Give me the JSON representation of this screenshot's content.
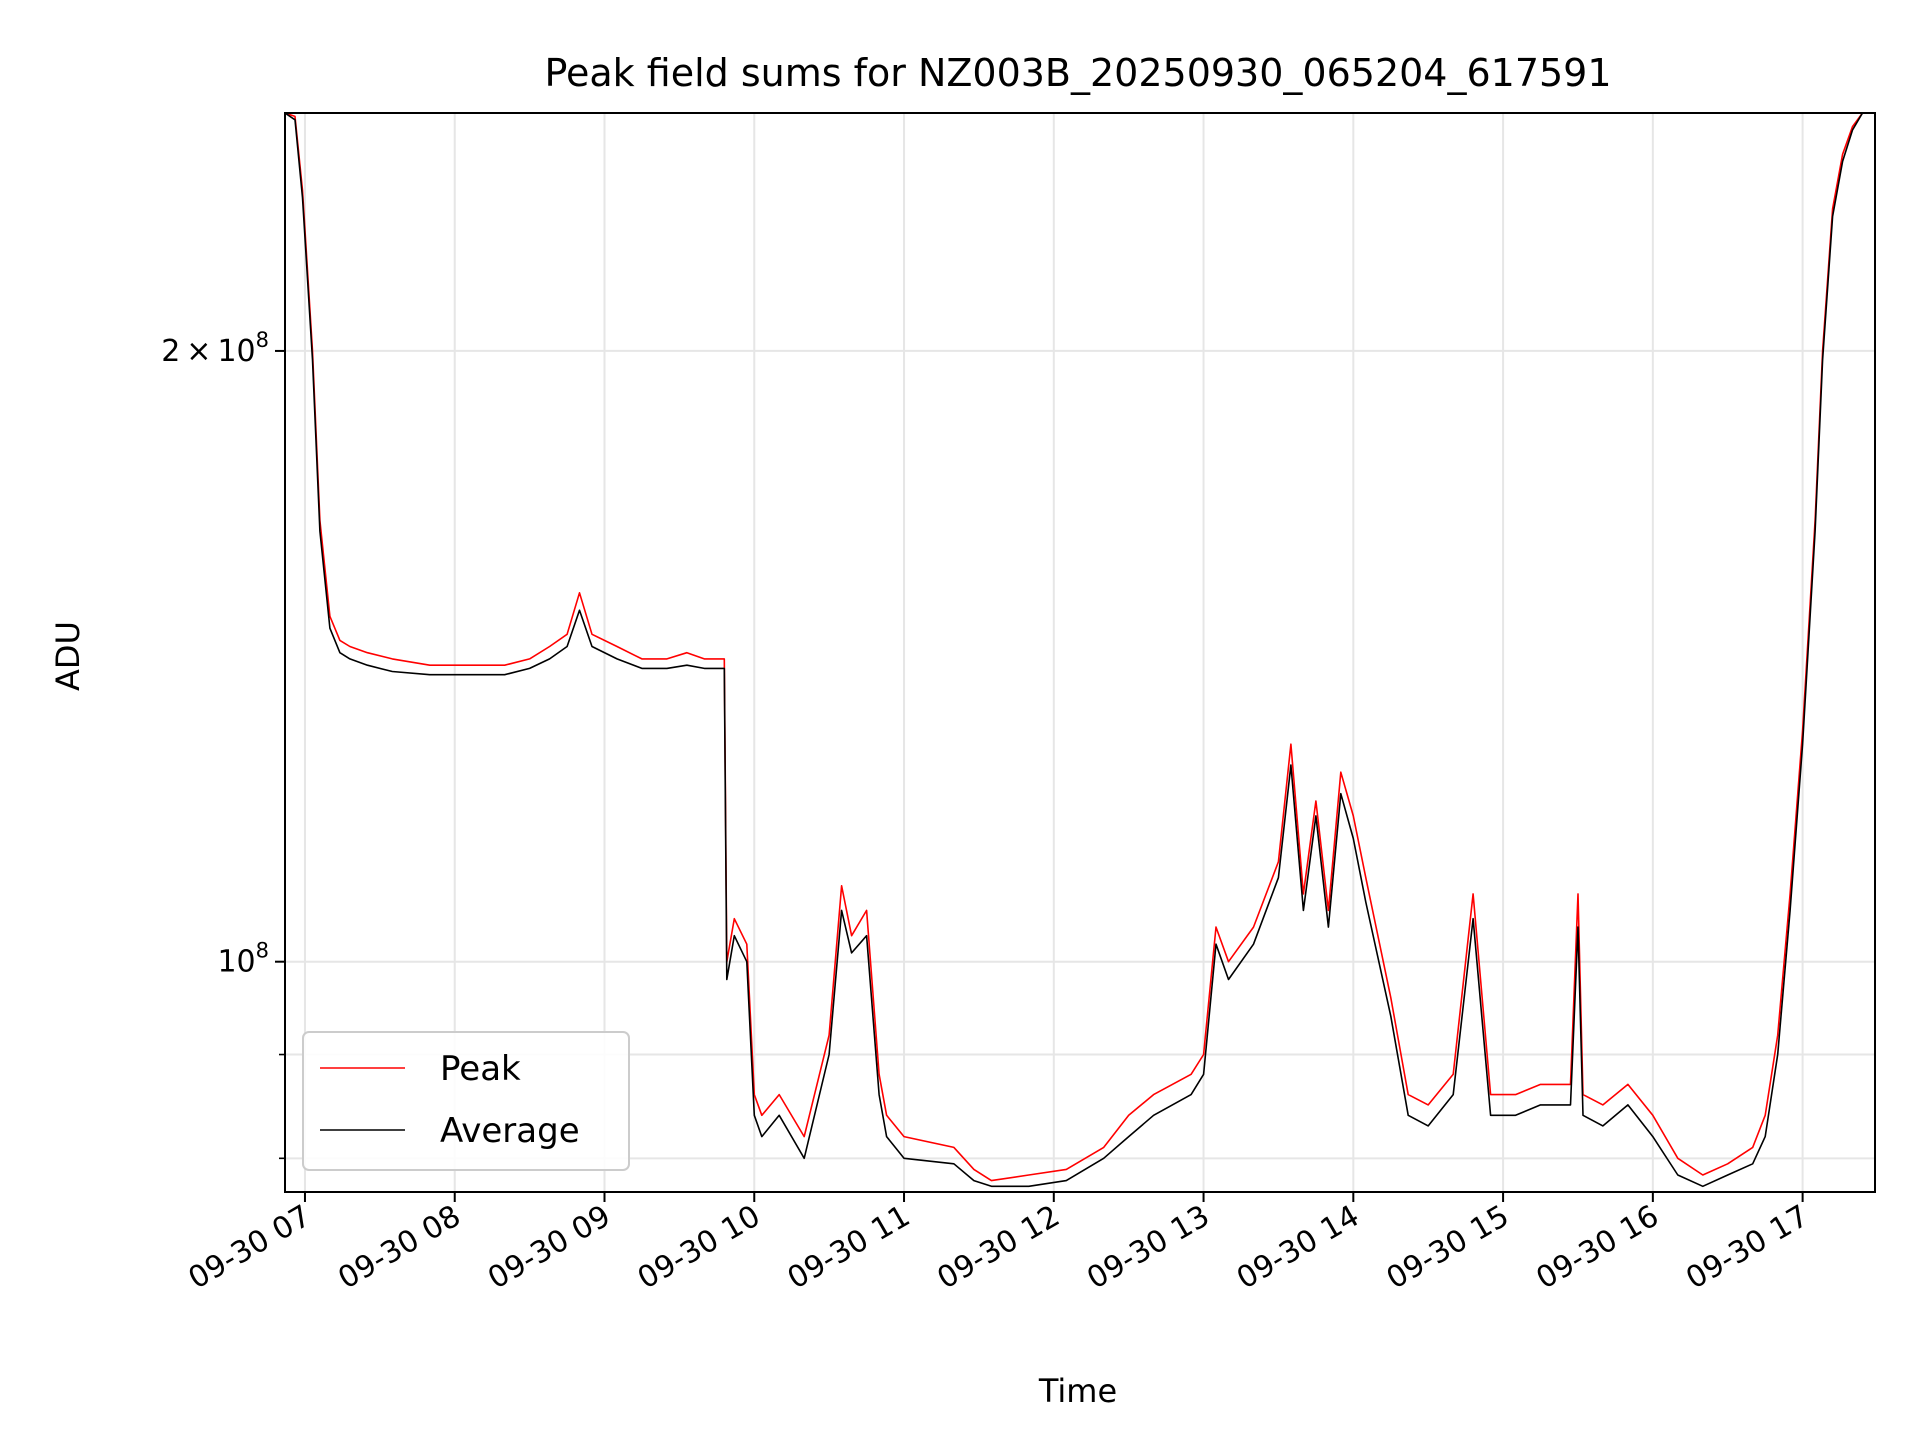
{
  "chart_data": {
    "type": "line",
    "title": "Peak field sums for NZ003B_20250930_065204_617591",
    "xlabel": "Time",
    "ylabel": "ADU",
    "x_scale": "time",
    "y_scale": "log",
    "xlim": [
      "2025-09-30 06:52",
      "2025-09-30 17:29"
    ],
    "ylim": [
      77000000,
      262000000
    ],
    "grid": true,
    "legend": {
      "placement": "lower-left",
      "entries": [
        "Peak",
        "Average"
      ]
    },
    "x_ticks": [
      "09-30 07",
      "09-30 08",
      "09-30 09",
      "09-30 10",
      "09-30 11",
      "09-30 12",
      "09-30 13",
      "09-30 14",
      "09-30 15",
      "09-30 16",
      "09-30 17"
    ],
    "y_tick_labels": [
      {
        "value": 100000000,
        "mantissa": "",
        "base": "10",
        "exp": "8"
      },
      {
        "value": 200000000,
        "mantissa": "2",
        "times": "×",
        "base": "10",
        "exp": "8"
      }
    ],
    "y_minor_ticks": [
      80000000,
      90000000
    ],
    "colors": {
      "Peak": "#ff0000",
      "Average": "#000000",
      "grid": "#e6e6e6"
    },
    "series": [
      {
        "name": "Peak",
        "x": [
          "2025-09-30 06:52",
          "2025-09-30 06:56",
          "2025-09-30 06:59",
          "2025-09-30 07:03",
          "2025-09-30 07:06",
          "2025-09-30 07:10",
          "2025-09-30 07:14",
          "2025-09-30 07:18",
          "2025-09-30 07:25",
          "2025-09-30 07:35",
          "2025-09-30 07:50",
          "2025-09-30 08:05",
          "2025-09-30 08:20",
          "2025-09-30 08:30",
          "2025-09-30 08:38",
          "2025-09-30 08:45",
          "2025-09-30 08:50",
          "2025-09-30 08:55",
          "2025-09-30 09:05",
          "2025-09-30 09:15",
          "2025-09-30 09:25",
          "2025-09-30 09:33",
          "2025-09-30 09:40",
          "2025-09-30 09:48",
          "2025-09-30 09:49",
          "2025-09-30 09:52",
          "2025-09-30 09:57",
          "2025-09-30 10:00",
          "2025-09-30 10:03",
          "2025-09-30 10:10",
          "2025-09-30 10:20",
          "2025-09-30 10:30",
          "2025-09-30 10:35",
          "2025-09-30 10:39",
          "2025-09-30 10:45",
          "2025-09-30 10:50",
          "2025-09-30 10:53",
          "2025-09-30 11:00",
          "2025-09-30 11:20",
          "2025-09-30 11:28",
          "2025-09-30 11:35",
          "2025-09-30 11:50",
          "2025-09-30 12:05",
          "2025-09-30 12:20",
          "2025-09-30 12:30",
          "2025-09-30 12:40",
          "2025-09-30 12:55",
          "2025-09-30 13:00",
          "2025-09-30 13:05",
          "2025-09-30 13:10",
          "2025-09-30 13:20",
          "2025-09-30 13:30",
          "2025-09-30 13:35",
          "2025-09-30 13:40",
          "2025-09-30 13:45",
          "2025-09-30 13:50",
          "2025-09-30 13:55",
          "2025-09-30 14:00",
          "2025-09-30 14:05",
          "2025-09-30 14:15",
          "2025-09-30 14:22",
          "2025-09-30 14:30",
          "2025-09-30 14:40",
          "2025-09-30 14:48",
          "2025-09-30 14:55",
          "2025-09-30 15:05",
          "2025-09-30 15:15",
          "2025-09-30 15:27",
          "2025-09-30 15:30",
          "2025-09-30 15:32",
          "2025-09-30 15:40",
          "2025-09-30 15:50",
          "2025-09-30 16:00",
          "2025-09-30 16:10",
          "2025-09-30 16:20",
          "2025-09-30 16:30",
          "2025-09-30 16:40",
          "2025-09-30 16:45",
          "2025-09-30 16:50",
          "2025-09-30 16:55",
          "2025-09-30 17:00",
          "2025-09-30 17:05",
          "2025-09-30 17:08",
          "2025-09-30 17:12",
          "2025-09-30 17:16",
          "2025-09-30 17:20",
          "2025-09-30 17:24",
          "2025-09-30 17:29"
        ],
        "values": [
          262000000,
          261000000,
          240000000,
          200000000,
          165000000,
          148000000,
          144000000,
          143000000,
          142000000,
          141000000,
          140000000,
          140000000,
          140000000,
          141000000,
          143000000,
          145000000,
          152000000,
          145000000,
          143000000,
          141000000,
          141000000,
          142000000,
          141000000,
          141000000,
          100000000,
          105000000,
          102000000,
          86000000,
          84000000,
          86000000,
          82000000,
          92000000,
          109000000,
          103000000,
          106000000,
          88000000,
          84000000,
          82000000,
          81000000,
          79000000,
          78000000,
          78500000,
          79000000,
          81000000,
          84000000,
          86000000,
          88000000,
          90000000,
          104000000,
          100000000,
          104000000,
          112000000,
          128000000,
          108000000,
          120000000,
          106000000,
          124000000,
          118000000,
          110000000,
          96000000,
          86000000,
          85000000,
          88000000,
          108000000,
          86000000,
          86000000,
          87000000,
          87000000,
          108000000,
          86000000,
          85000000,
          87000000,
          84000000,
          80000000,
          78500000,
          79500000,
          81000000,
          84000000,
          92000000,
          108000000,
          130000000,
          165000000,
          200000000,
          235000000,
          250000000,
          258000000,
          262000000,
          262000000
        ]
      },
      {
        "name": "Average",
        "x": [
          "2025-09-30 06:52",
          "2025-09-30 06:56",
          "2025-09-30 06:59",
          "2025-09-30 07:03",
          "2025-09-30 07:06",
          "2025-09-30 07:10",
          "2025-09-30 07:14",
          "2025-09-30 07:18",
          "2025-09-30 07:25",
          "2025-09-30 07:35",
          "2025-09-30 07:50",
          "2025-09-30 08:05",
          "2025-09-30 08:20",
          "2025-09-30 08:30",
          "2025-09-30 08:38",
          "2025-09-30 08:45",
          "2025-09-30 08:50",
          "2025-09-30 08:55",
          "2025-09-30 09:05",
          "2025-09-30 09:15",
          "2025-09-30 09:25",
          "2025-09-30 09:33",
          "2025-09-30 09:40",
          "2025-09-30 09:48",
          "2025-09-30 09:49",
          "2025-09-30 09:52",
          "2025-09-30 09:57",
          "2025-09-30 10:00",
          "2025-09-30 10:03",
          "2025-09-30 10:10",
          "2025-09-30 10:20",
          "2025-09-30 10:30",
          "2025-09-30 10:35",
          "2025-09-30 10:39",
          "2025-09-30 10:45",
          "2025-09-30 10:50",
          "2025-09-30 10:53",
          "2025-09-30 11:00",
          "2025-09-30 11:20",
          "2025-09-30 11:28",
          "2025-09-30 11:35",
          "2025-09-30 11:50",
          "2025-09-30 12:05",
          "2025-09-30 12:20",
          "2025-09-30 12:30",
          "2025-09-30 12:40",
          "2025-09-30 12:55",
          "2025-09-30 13:00",
          "2025-09-30 13:05",
          "2025-09-30 13:10",
          "2025-09-30 13:20",
          "2025-09-30 13:30",
          "2025-09-30 13:35",
          "2025-09-30 13:40",
          "2025-09-30 13:45",
          "2025-09-30 13:50",
          "2025-09-30 13:55",
          "2025-09-30 14:00",
          "2025-09-30 14:05",
          "2025-09-30 14:15",
          "2025-09-30 14:22",
          "2025-09-30 14:30",
          "2025-09-30 14:40",
          "2025-09-30 14:48",
          "2025-09-30 14:55",
          "2025-09-30 15:05",
          "2025-09-30 15:15",
          "2025-09-30 15:27",
          "2025-09-30 15:30",
          "2025-09-30 15:32",
          "2025-09-30 15:40",
          "2025-09-30 15:50",
          "2025-09-30 16:00",
          "2025-09-30 16:10",
          "2025-09-30 16:20",
          "2025-09-30 16:30",
          "2025-09-30 16:40",
          "2025-09-30 16:45",
          "2025-09-30 16:50",
          "2025-09-30 16:55",
          "2025-09-30 17:00",
          "2025-09-30 17:05",
          "2025-09-30 17:08",
          "2025-09-30 17:12",
          "2025-09-30 17:16",
          "2025-09-30 17:20",
          "2025-09-30 17:24",
          "2025-09-30 17:29"
        ],
        "values": [
          262000000,
          260000000,
          238000000,
          198000000,
          163000000,
          146000000,
          142000000,
          141000000,
          140000000,
          139000000,
          138500000,
          138500000,
          138500000,
          139500000,
          141000000,
          143000000,
          149000000,
          143000000,
          141000000,
          139500000,
          139500000,
          140000000,
          139500000,
          139500000,
          98000000,
          103000000,
          100000000,
          84000000,
          82000000,
          84000000,
          80000000,
          90000000,
          106000000,
          101000000,
          103000000,
          86000000,
          82000000,
          80000000,
          79500000,
          78000000,
          77500000,
          77500000,
          78000000,
          80000000,
          82000000,
          84000000,
          86000000,
          88000000,
          102000000,
          98000000,
          102000000,
          110000000,
          125000000,
          106000000,
          118000000,
          104000000,
          121000000,
          115000000,
          107000000,
          94000000,
          84000000,
          83000000,
          86000000,
          105000000,
          84000000,
          84000000,
          85000000,
          85000000,
          104000000,
          84000000,
          83000000,
          85000000,
          82000000,
          78500000,
          77500000,
          78500000,
          79500000,
          82000000,
          90000000,
          106000000,
          128000000,
          163000000,
          198000000,
          233000000,
          248000000,
          257000000,
          262000000,
          262000000
        ]
      }
    ]
  }
}
